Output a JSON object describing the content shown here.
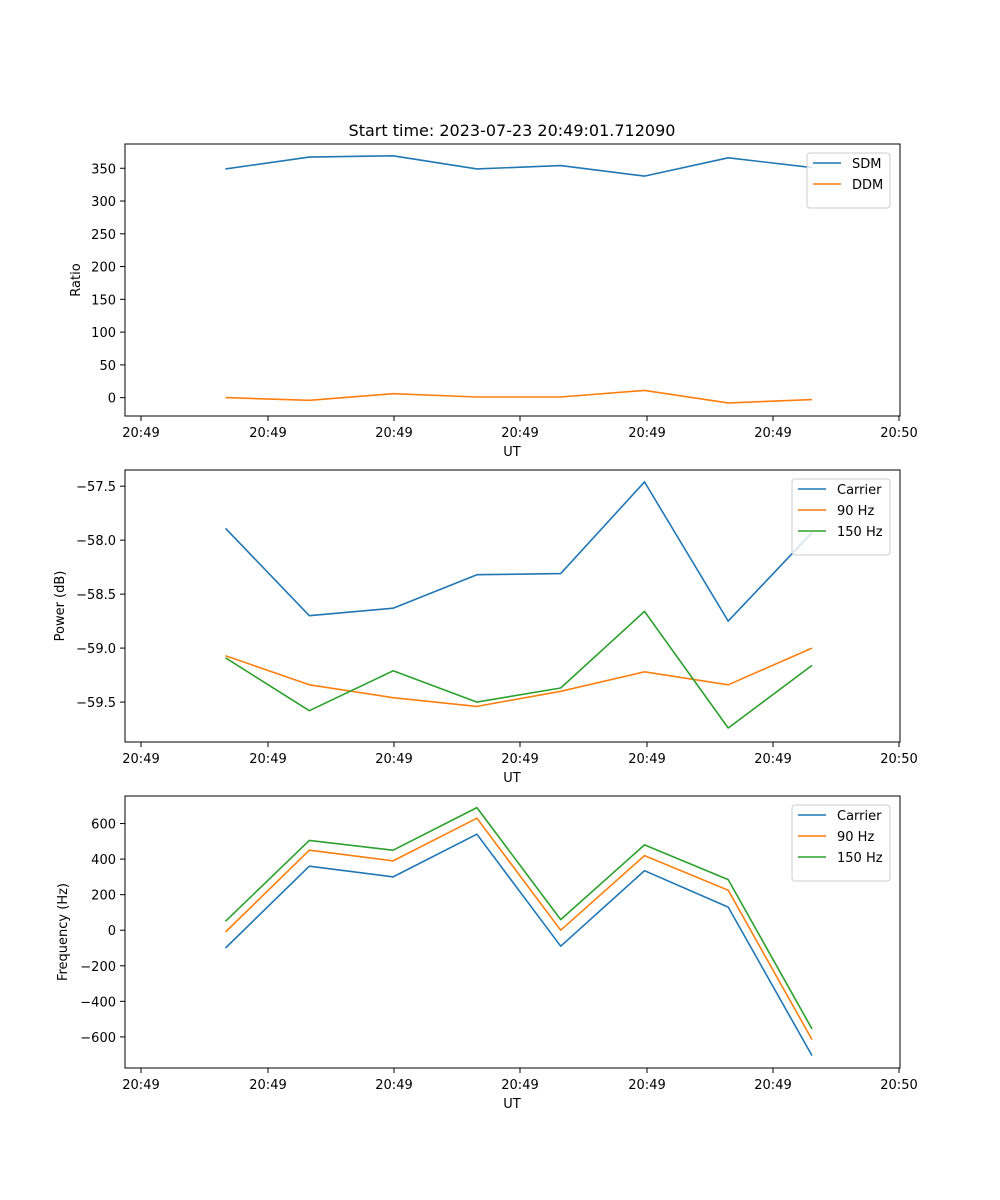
{
  "title": "Start time: 2023-07-23 20:49:01.712090",
  "chart_data": [
    {
      "type": "line",
      "title": "Start time: 2023-07-23 20:49:01.712090",
      "xlabel": "UT",
      "ylabel": "Ratio",
      "x_tick_labels": [
        "20:49",
        "20:49",
        "20:49",
        "20:49",
        "20:49",
        "20:49",
        "20:50"
      ],
      "y_ticks": [
        0,
        50,
        100,
        150,
        200,
        250,
        300,
        350
      ],
      "ylim": [
        -28,
        387
      ],
      "x": [
        1,
        2,
        3,
        4,
        5,
        6,
        7,
        8
      ],
      "xlim": [
        -0.2,
        9.05
      ],
      "legend_position": "top-right",
      "series": [
        {
          "name": "SDM",
          "color": "#1f77b4",
          "values": [
            349,
            367,
            369,
            349,
            354,
            338,
            366,
            351
          ]
        },
        {
          "name": "DDM",
          "color": "#ff7f0e",
          "values": [
            0,
            -4,
            6,
            1,
            1,
            11,
            -8,
            -3
          ]
        }
      ]
    },
    {
      "type": "line",
      "xlabel": "UT",
      "ylabel": "Power (dB)",
      "x_tick_labels": [
        "20:49",
        "20:49",
        "20:49",
        "20:49",
        "20:49",
        "20:49",
        "20:50"
      ],
      "y_ticks": [
        -59.5,
        -59.0,
        -58.5,
        -58.0,
        -57.5
      ],
      "y_tick_labels": [
        "−59.5",
        "−59.0",
        "−58.5",
        "−58.0",
        "−57.5"
      ],
      "ylim": [
        -59.87,
        -57.35
      ],
      "x": [
        1,
        2,
        3,
        4,
        5,
        6,
        7,
        8
      ],
      "xlim": [
        -0.2,
        9.05
      ],
      "legend_position": "top-right",
      "series": [
        {
          "name": "Carrier",
          "color": "#1f77b4",
          "values": [
            -57.89,
            -58.7,
            -58.63,
            -58.32,
            -58.31,
            -57.46,
            -58.75,
            -57.93
          ]
        },
        {
          "name": "90 Hz",
          "color": "#ff7f0e",
          "values": [
            -59.07,
            -59.34,
            -59.46,
            -59.54,
            -59.4,
            -59.22,
            -59.34,
            -59.0
          ]
        },
        {
          "name": "150 Hz",
          "color": "#2ca02c",
          "values": [
            -59.09,
            -59.58,
            -59.21,
            -59.5,
            -59.37,
            -58.66,
            -59.74,
            -59.16
          ]
        }
      ]
    },
    {
      "type": "line",
      "xlabel": "UT",
      "ylabel": "Frequency (Hz)",
      "x_tick_labels": [
        "20:49",
        "20:49",
        "20:49",
        "20:49",
        "20:49",
        "20:49",
        "20:50"
      ],
      "y_ticks": [
        -600,
        -400,
        -200,
        0,
        200,
        400,
        600
      ],
      "y_tick_labels": [
        "−600",
        "−400",
        "−200",
        "0",
        "200",
        "400",
        "600"
      ],
      "ylim": [
        -775,
        755
      ],
      "x": [
        1,
        2,
        3,
        4,
        5,
        6,
        7,
        8
      ],
      "xlim": [
        -0.2,
        9.05
      ],
      "legend_position": "top-right",
      "series": [
        {
          "name": "Carrier",
          "color": "#1f77b4",
          "values": [
            -100,
            360,
            300,
            540,
            -90,
            335,
            130,
            -705
          ]
        },
        {
          "name": "90 Hz",
          "color": "#ff7f0e",
          "values": [
            -10,
            450,
            390,
            630,
            0,
            420,
            225,
            -615
          ]
        },
        {
          "name": "150 Hz",
          "color": "#2ca02c",
          "values": [
            50,
            505,
            450,
            690,
            60,
            480,
            285,
            -555
          ]
        }
      ]
    }
  ]
}
